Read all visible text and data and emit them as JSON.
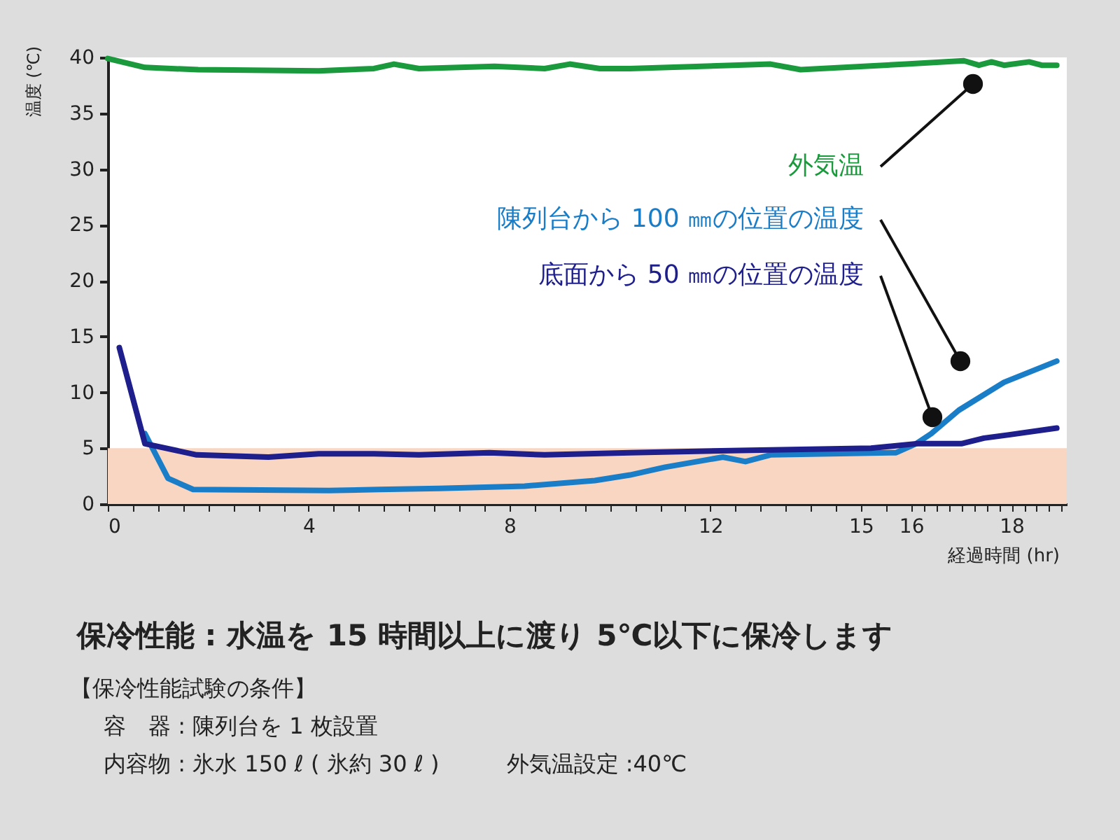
{
  "chart_data": {
    "type": "line",
    "title": "保冷性能 : 水温を 15 時間以上に渡り 5℃以下に保冷します",
    "xlabel": "経過時間 (hr)",
    "ylabel": "温度 (℃)",
    "annotations": [
      "【保冷性能試験の条件】",
      "容　器 : 陳列台を 1 枚設置",
      "内容物 : 氷水 150 ℓ ( 氷約 30 ℓ )　　　外気温設定 :40℃"
    ],
    "series": [
      {
        "name": "外気温",
        "color": "#1a9a3c",
        "x": [
          0,
          0.74,
          1.8,
          4.2,
          5.3,
          5.7,
          6.2,
          7.7,
          8.7,
          9.2,
          9.8,
          10.4,
          13.2,
          13.8,
          15.9,
          17.05,
          17.35,
          17.6,
          17.85,
          18.35,
          18.6,
          18.9
        ],
        "values": [
          39.9,
          39.1,
          38.9,
          38.8,
          39.0,
          39.4,
          39.0,
          39.2,
          39.0,
          39.4,
          39.0,
          39.0,
          39.4,
          38.9,
          39.4,
          39.7,
          39.3,
          39.6,
          39.3,
          39.6,
          39.3,
          39.3
        ]
      },
      {
        "name": "陳列台から 100 ㎜の位置の温度",
        "color": "#1a7dc8",
        "x": [
          0.74,
          1.2,
          1.7,
          4.4,
          5.4,
          6.6,
          8.3,
          9.7,
          10.4,
          11.1,
          12.25,
          12.7,
          13.2,
          15.7,
          16.1,
          16.4,
          16.95,
          17.85,
          18.9
        ],
        "values": [
          6.3,
          2.3,
          1.3,
          1.2,
          1.3,
          1.4,
          1.6,
          2.1,
          2.6,
          3.3,
          4.2,
          3.8,
          4.4,
          4.6,
          5.4,
          6.3,
          8.4,
          10.9,
          12.8
        ]
      },
      {
        "name": "底面から 50 ㎜の位置の温度",
        "color": "#1e1e8c",
        "x": [
          0.23,
          0.74,
          1.77,
          3.2,
          4.2,
          5.3,
          6.2,
          7.6,
          8.7,
          10.4,
          12.6,
          15.2,
          16.1,
          17.0,
          17.45,
          17.95,
          18.9
        ],
        "values": [
          14.0,
          5.4,
          4.4,
          4.2,
          4.5,
          4.5,
          4.4,
          4.6,
          4.4,
          4.6,
          4.8,
          5.0,
          5.4,
          5.4,
          5.9,
          6.2,
          6.8
        ]
      }
    ],
    "bands": [
      {
        "axis": "y",
        "from": 0,
        "to": 5,
        "color": "#f9d6c2"
      }
    ],
    "xlim": [
      0,
      19.1
    ],
    "ylim": [
      0,
      40
    ],
    "xticks": [
      0,
      {
        "value": 0.5,
        "label": null
      },
      {
        "value": 1,
        "label": null
      },
      {
        "value": 1.5,
        "label": null
      },
      {
        "value": 2,
        "label": null
      },
      {
        "value": 2.5,
        "label": null
      },
      {
        "value": 3,
        "label": null
      },
      {
        "value": 3.5,
        "label": null
      },
      4,
      {
        "value": 4.5,
        "label": null
      },
      {
        "value": 5,
        "label": null
      },
      {
        "value": 5.5,
        "label": null
      },
      {
        "value": 6,
        "label": null
      },
      {
        "value": 6.5,
        "label": null
      },
      {
        "value": 7,
        "label": null
      },
      {
        "value": 7.5,
        "label": null
      },
      8,
      {
        "value": 8.5,
        "label": null
      },
      {
        "value": 9,
        "label": null
      },
      {
        "value": 9.5,
        "label": null
      },
      {
        "value": 10,
        "label": null
      },
      {
        "value": 10.5,
        "label": null
      },
      {
        "value": 11,
        "label": null
      },
      {
        "value": 11.5,
        "label": null
      },
      12,
      {
        "value": 12.5,
        "label": null
      },
      {
        "value": 13,
        "label": null
      },
      {
        "value": 13.5,
        "label": null
      },
      {
        "value": 14,
        "label": null
      },
      {
        "value": 14.5,
        "label": null
      },
      15,
      {
        "value": 15.5,
        "label": null
      },
      16,
      {
        "value": 16.25,
        "label": null
      },
      {
        "value": 16.5,
        "label": null
      },
      {
        "value": 16.75,
        "label": null
      },
      {
        "value": 17,
        "label": null
      },
      {
        "value": 17.25,
        "label": null
      },
      {
        "value": 17.5,
        "label": null
      },
      {
        "value": 17.75,
        "label": null
      },
      18,
      {
        "value": 18.25,
        "label": null
      },
      {
        "value": 18.5,
        "label": null
      },
      {
        "value": 18.75,
        "label": null
      },
      {
        "value": 19,
        "label": null
      }
    ],
    "yticks": [
      0,
      5,
      10,
      15,
      20,
      25,
      30,
      35,
      40
    ],
    "grid": false,
    "legend": false,
    "line_style": "solid",
    "marker": "none"
  }
}
